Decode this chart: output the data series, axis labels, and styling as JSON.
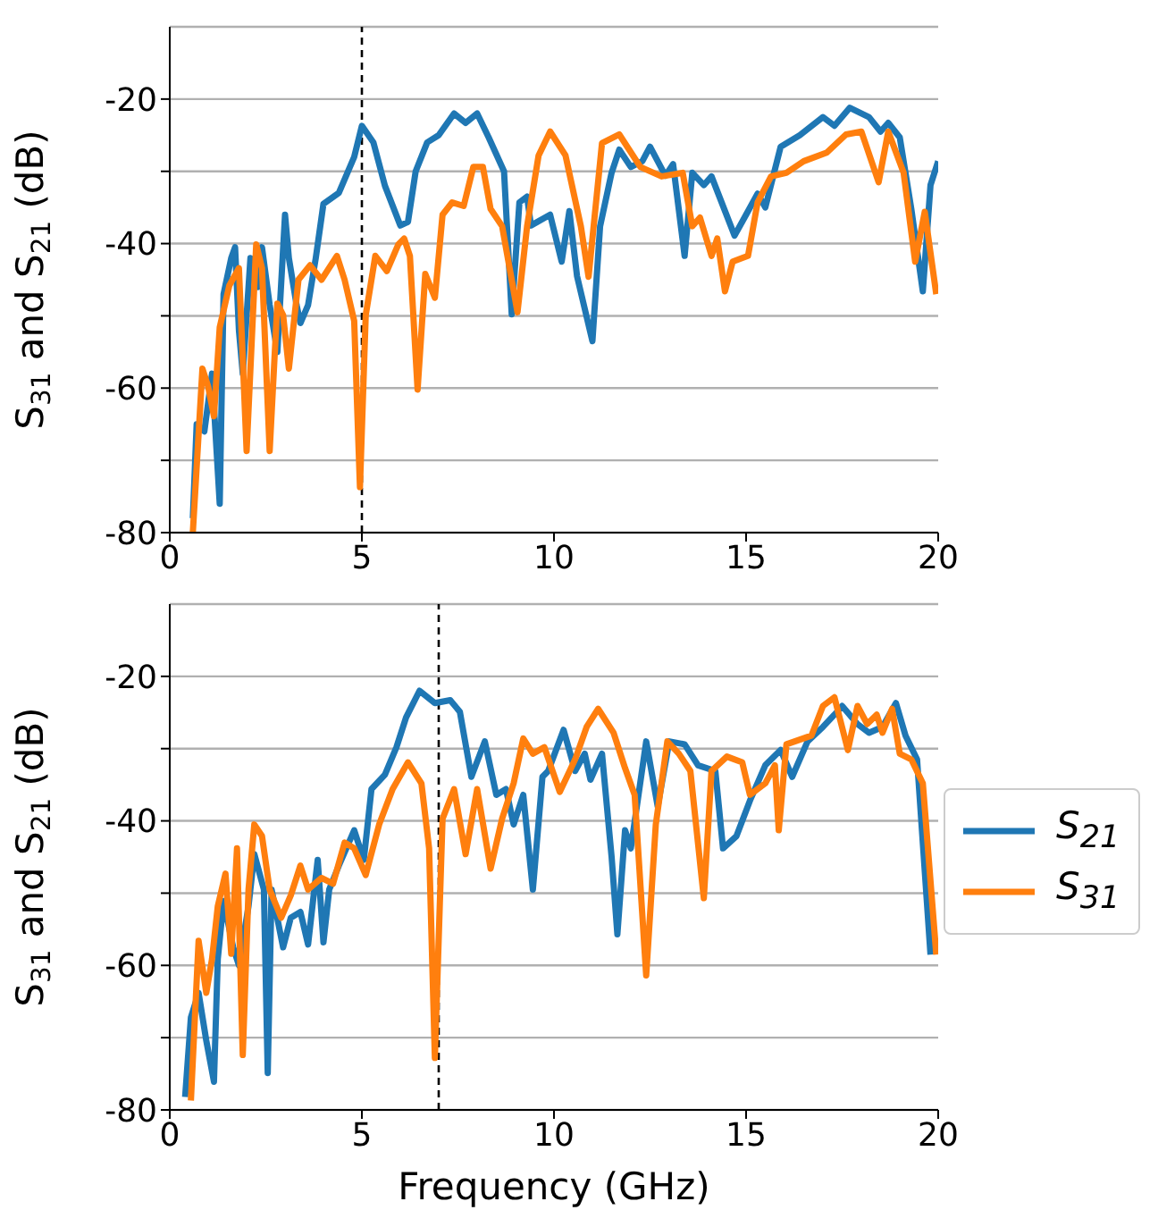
{
  "chart_data": [
    {
      "type": "line",
      "ylabel": "S$_{31}$ and S$_{21}$ (dB)",
      "xlim": [
        0,
        20
      ],
      "xticks": [
        0,
        5,
        10,
        15,
        20
      ],
      "ylim": [
        -80,
        -10
      ],
      "yticks": [
        -80,
        {
          "value": -70,
          "label": null
        },
        -60,
        {
          "value": -50,
          "label": null
        },
        -40,
        {
          "value": -30,
          "label": null
        },
        -20
      ],
      "grid": "y",
      "marker": "none",
      "line_style": "solid",
      "ref_lines": [
        {
          "axis": "x",
          "value": 5,
          "color": "#000000",
          "line_style": "dashed"
        }
      ],
      "series": [
        {
          "color": "#1f77b4",
          "x": [
            0.6,
            0.7,
            0.9,
            1.1,
            1.3,
            1.4,
            1.6,
            1.7,
            1.8,
            1.9,
            2.1,
            2.3,
            2.4,
            2.6,
            2.8,
            3.0,
            3.1,
            3.3,
            3.4,
            3.6,
            3.8,
            4.0,
            4.4,
            4.8,
            5.0,
            5.3,
            5.6,
            6.0,
            6.2,
            6.4,
            6.7,
            7.0,
            7.4,
            7.7,
            8.0,
            8.3,
            8.7,
            8.9,
            9.1,
            9.3,
            9.4,
            9.9,
            10.2,
            10.4,
            10.6,
            11.0,
            11.2,
            11.5,
            11.7,
            12.0,
            12.3,
            12.5,
            12.9,
            13.1,
            13.4,
            13.6,
            13.9,
            14.1,
            14.7,
            15.0,
            15.3,
            15.5,
            15.9,
            16.4,
            17.0,
            17.3,
            17.7,
            18.2,
            18.5,
            18.7,
            19.0,
            19.3,
            19.6,
            19.8,
            20.0
          ],
          "values": [
            -78,
            -65,
            -66,
            -58,
            -76,
            -47,
            -42,
            -40.5,
            -52,
            -58,
            -42,
            -46,
            -40.5,
            -48.5,
            -55,
            -36,
            -42,
            -48.5,
            -51,
            -48.5,
            -42,
            -34.5,
            -33,
            -28,
            -23.7,
            -26,
            -32,
            -37.5,
            -37,
            -30,
            -26,
            -25,
            -22,
            -23.3,
            -22,
            -25.3,
            -30,
            -49.8,
            -34.3,
            -33.5,
            -37.5,
            -36,
            -42.5,
            -35.5,
            -44.5,
            -53.5,
            -37.6,
            -30.2,
            -27,
            -29.4,
            -28.6,
            -26.6,
            -30.6,
            -29,
            -41.7,
            -30.2,
            -31.9,
            -30.7,
            -38.9,
            -36,
            -33.1,
            -35,
            -26.6,
            -25,
            -22.5,
            -23.7,
            -21.2,
            -22.5,
            -24.5,
            -23.3,
            -25.3,
            -35.2,
            -46.6,
            -31.9,
            -28.6
          ]
        },
        {
          "color": "#ff7f0e",
          "x": [
            0.6,
            0.85,
            1.0,
            1.15,
            1.3,
            1.55,
            1.8,
            2.0,
            2.25,
            2.4,
            2.6,
            2.8,
            2.95,
            3.1,
            3.35,
            3.65,
            3.95,
            4.35,
            4.55,
            4.8,
            4.95,
            5.1,
            5.35,
            5.65,
            5.95,
            6.1,
            6.25,
            6.45,
            6.65,
            6.9,
            7.1,
            7.35,
            7.65,
            7.9,
            8.15,
            8.35,
            8.65,
            9.05,
            9.3,
            9.6,
            9.9,
            10.3,
            10.7,
            10.9,
            11.25,
            11.7,
            12.25,
            12.8,
            13.35,
            13.6,
            13.8,
            14.1,
            14.25,
            14.45,
            14.65,
            15.05,
            15.3,
            15.65,
            16.05,
            16.5,
            17.1,
            17.6,
            18.0,
            18.45,
            18.7,
            19.1,
            19.4,
            19.65,
            19.95
          ],
          "values": [
            -80,
            -57.3,
            -59.8,
            -63.9,
            -51.6,
            -45.8,
            -43.4,
            -68.7,
            -40.1,
            -43.4,
            -68.7,
            -48.3,
            -49.9,
            -57.3,
            -45,
            -43,
            -45,
            -41.7,
            -45,
            -50.7,
            -73.7,
            -49.9,
            -41.7,
            -43.8,
            -40.1,
            -39.3,
            -41.7,
            -60.2,
            -44.2,
            -47.5,
            -36,
            -34.3,
            -34.8,
            -29.4,
            -29.4,
            -35.2,
            -37.6,
            -49.5,
            -37.6,
            -27.8,
            -24.5,
            -27.8,
            -37.6,
            -44.6,
            -26.1,
            -24.9,
            -29.4,
            -30.7,
            -30.2,
            -37.6,
            -36.4,
            -41.7,
            -39.3,
            -46.6,
            -42.5,
            -41.7,
            -34.3,
            -30.7,
            -30.2,
            -28.6,
            -27.4,
            -24.9,
            -24.5,
            -31.5,
            -24.5,
            -30.2,
            -42.5,
            -35.6,
            -47
          ]
        }
      ]
    },
    {
      "type": "line",
      "xlabel": "Frequency (GHz)",
      "ylabel": "S$_{31}$ and S$_{21}$ (dB)",
      "xlim": [
        0,
        20
      ],
      "xticks": [
        0,
        5,
        10,
        15,
        20
      ],
      "ylim": [
        -80,
        -10
      ],
      "yticks": [
        -80,
        {
          "value": -70,
          "label": null
        },
        -60,
        {
          "value": -50,
          "label": null
        },
        -40,
        {
          "value": -30,
          "label": null
        },
        -20
      ],
      "grid": "y",
      "legend": "right",
      "marker": "none",
      "line_style": "solid",
      "ref_lines": [
        {
          "axis": "x",
          "value": 7,
          "color": "#000000",
          "line_style": "dashed"
        }
      ],
      "series": [
        {
          "name": "S$_{21}$",
          "color": "#1f77b4",
          "x": [
            0.4,
            0.55,
            0.75,
            0.95,
            1.15,
            1.25,
            1.4,
            1.65,
            1.8,
            2.05,
            2.2,
            2.45,
            2.55,
            2.65,
            2.95,
            3.15,
            3.4,
            3.6,
            3.85,
            4.0,
            4.15,
            4.4,
            4.8,
            5.05,
            5.25,
            5.6,
            5.9,
            6.15,
            6.5,
            6.9,
            7.3,
            7.55,
            7.85,
            8.2,
            8.5,
            8.75,
            8.95,
            9.2,
            9.45,
            9.7,
            9.85,
            10.25,
            10.55,
            10.8,
            10.95,
            11.25,
            11.5,
            11.65,
            11.85,
            12.0,
            12.4,
            12.7,
            13.0,
            13.4,
            13.75,
            14.2,
            14.4,
            14.75,
            15.1,
            15.5,
            15.9,
            16.2,
            16.6,
            17.0,
            17.3,
            17.5,
            17.9,
            18.2,
            18.55,
            18.9,
            19.15,
            19.45,
            19.8
          ],
          "values": [
            -78.2,
            -67.2,
            -63.8,
            -70.4,
            -76.1,
            -59.1,
            -51.1,
            -57.5,
            -60,
            -51.8,
            -44.6,
            -49.5,
            -74.9,
            -49.5,
            -57.5,
            -53.4,
            -52.6,
            -57.1,
            -45.4,
            -56.8,
            -49.5,
            -46.2,
            -41.3,
            -45.4,
            -35.6,
            -33.6,
            -29.8,
            -25.7,
            -22,
            -23.7,
            -23.3,
            -24.9,
            -33.9,
            -29,
            -36.4,
            -35.6,
            -40.5,
            -36.4,
            -49.5,
            -33.9,
            -33.1,
            -27.4,
            -33.1,
            -30.7,
            -34.3,
            -30.7,
            -45,
            -55.7,
            -41.3,
            -43.8,
            -29,
            -38,
            -29,
            -29.4,
            -32.3,
            -33.1,
            -43.8,
            -42.1,
            -37.2,
            -32.3,
            -30.2,
            -33.9,
            -29,
            -27,
            -25.3,
            -24.1,
            -26.6,
            -27.8,
            -27,
            -23.7,
            -28.2,
            -31.5,
            -58.5
          ]
        },
        {
          "name": "S$_{31}$",
          "color": "#ff7f0e",
          "x": [
            0.55,
            0.75,
            0.95,
            1.1,
            1.25,
            1.45,
            1.6,
            1.75,
            1.9,
            2.05,
            2.2,
            2.4,
            2.6,
            2.9,
            3.15,
            3.4,
            3.6,
            3.95,
            4.25,
            4.55,
            4.8,
            5.1,
            5.45,
            5.8,
            6.2,
            6.55,
            6.75,
            6.9,
            7.1,
            7.4,
            7.7,
            8.0,
            8.35,
            8.65,
            8.95,
            9.2,
            9.45,
            9.75,
            10.15,
            10.55,
            10.85,
            11.15,
            11.55,
            11.85,
            12.1,
            12.4,
            12.65,
            12.95,
            13.25,
            13.55,
            13.9,
            14.1,
            14.5,
            14.9,
            15.1,
            15.5,
            15.75,
            15.85,
            16.05,
            16.7,
            17.0,
            17.3,
            17.65,
            17.9,
            18.15,
            18.4,
            18.55,
            18.8,
            19.0,
            19.3,
            19.6,
            19.95
          ],
          "values": [
            -78.7,
            -56.6,
            -63.8,
            -59.1,
            -51.8,
            -47.3,
            -58.4,
            -43.8,
            -72.4,
            -49.5,
            -40.5,
            -42.1,
            -49.5,
            -53.4,
            -50.3,
            -46.2,
            -49.5,
            -47.9,
            -48.7,
            -43,
            -43.8,
            -47.5,
            -40.5,
            -35.6,
            -31.9,
            -34.8,
            -43.8,
            -72.8,
            -39.7,
            -35.6,
            -44.6,
            -35.6,
            -46.6,
            -39.7,
            -34.8,
            -28.6,
            -30.7,
            -29.8,
            -36,
            -31.5,
            -27,
            -24.5,
            -27.8,
            -32.7,
            -36.4,
            -61.4,
            -40.5,
            -29,
            -30.7,
            -33.1,
            -50.7,
            -33.1,
            -31.1,
            -31.9,
            -36.4,
            -34.8,
            -32.3,
            -41.3,
            -29.4,
            -28.2,
            -24.1,
            -22.9,
            -30.2,
            -24.1,
            -26.6,
            -25.3,
            -27.8,
            -24.5,
            -30.7,
            -31.5,
            -34.8,
            -58.5
          ]
        }
      ]
    }
  ]
}
